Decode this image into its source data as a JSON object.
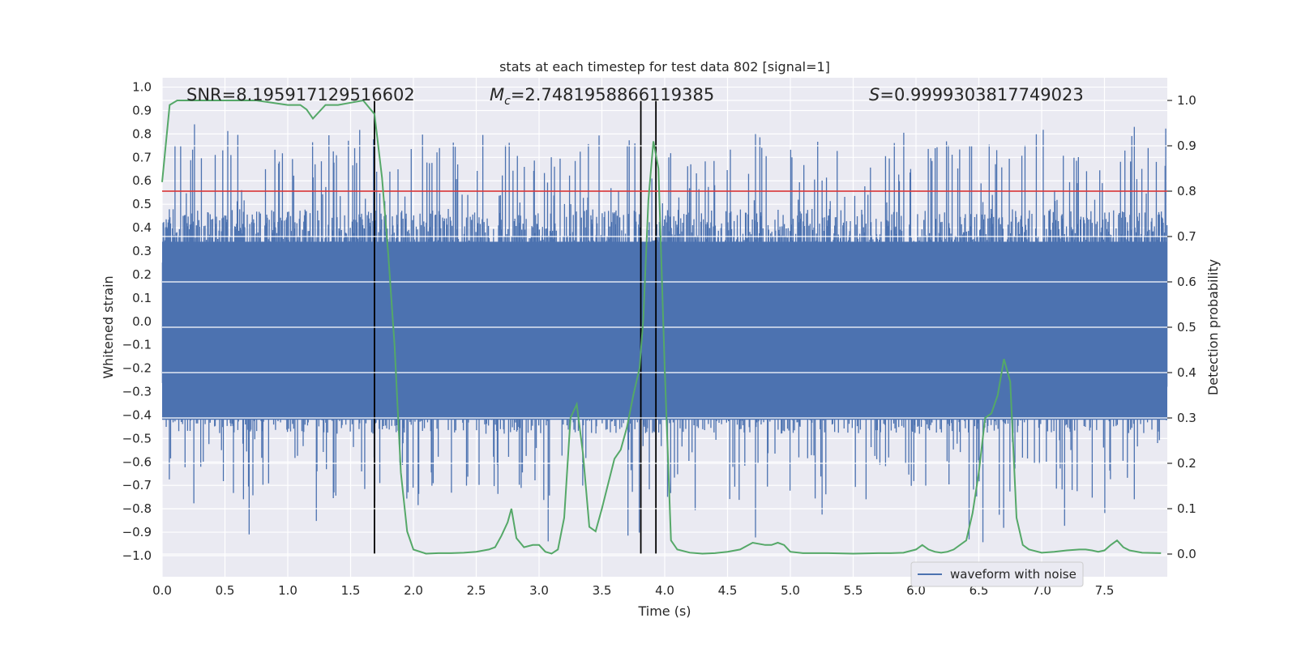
{
  "chart_data": {
    "type": "line",
    "title": "stats at each timestep for test data 802 [signal=1]",
    "xlabel": "Time (s)",
    "ylabel_left": "Whitened strain",
    "ylabel_right": "Detection probability",
    "xlim": [
      0.0,
      8.0
    ],
    "ylim_left": [
      -1.09,
      1.04
    ],
    "ylim_right": [
      -0.05,
      1.05
    ],
    "x_ticks": [
      0.0,
      0.5,
      1.0,
      1.5,
      2.0,
      2.5,
      3.0,
      3.5,
      4.0,
      4.5,
      5.0,
      5.5,
      6.0,
      6.5,
      7.0,
      7.5
    ],
    "x_tick_labels": [
      "0.0",
      "0.5",
      "1.0",
      "1.5",
      "2.0",
      "2.5",
      "3.0",
      "3.5",
      "4.0",
      "4.5",
      "5.0",
      "5.5",
      "6.0",
      "6.5",
      "7.0",
      "7.5"
    ],
    "y_ticks_left": [
      1.0,
      0.9,
      0.8,
      0.7,
      0.6,
      0.5,
      0.4,
      0.3,
      0.2,
      0.1,
      0.0,
      -0.1,
      -0.2,
      -0.3,
      -0.4,
      -0.5,
      -0.6,
      -0.7,
      -0.8,
      -0.9,
      -1.0
    ],
    "y_tick_labels_left": [
      "1.0",
      "0.9",
      "0.8",
      "0.7",
      "0.6",
      "0.5",
      "0.4",
      "0.3",
      "0.2",
      "0.1",
      "0.0",
      "−0.1",
      "−0.2",
      "−0.3",
      "−0.4",
      "−0.5",
      "−0.6",
      "−0.7",
      "−0.8",
      "−0.9",
      "−1.0"
    ],
    "y_ticks_right": [
      1.0,
      0.9,
      0.8,
      0.7,
      0.6,
      0.5,
      0.4,
      0.3,
      0.2,
      0.1,
      0.0
    ],
    "y_tick_labels_right": [
      "1.0",
      "0.9",
      "0.8",
      "0.7",
      "0.6",
      "0.5",
      "0.4",
      "0.3",
      "0.2",
      "0.1",
      "0.0"
    ],
    "annotations": {
      "snr": "SNR=8.195917129516602",
      "mc_symbol": "M",
      "mc_sub": "c",
      "mc_value": "=2.7481958866119385",
      "s_symbol": "S",
      "s_value": "=0.9999303817749023"
    },
    "threshold_line": {
      "y_right": 0.8,
      "color": "#d62728"
    },
    "vertical_lines_time_s": [
      1.69,
      3.81,
      3.93
    ],
    "legend": {
      "label": "waveform with noise",
      "position": "lower-right"
    },
    "waveform": {
      "name": "waveform with noise",
      "color": "#4c72b0",
      "approx_envelope": [
        -0.42,
        0.42
      ],
      "peak_min": -1.0,
      "peak_max": 0.93,
      "samples": 1600
    },
    "probability_series": {
      "name": "detection probability",
      "color": "#55a868",
      "x": [
        0.0,
        0.06,
        0.12,
        0.25,
        0.5,
        0.75,
        1.0,
        1.1,
        1.15,
        1.2,
        1.3,
        1.4,
        1.5,
        1.6,
        1.69,
        1.75,
        1.8,
        1.85,
        1.9,
        1.95,
        2.0,
        2.1,
        2.2,
        2.3,
        2.4,
        2.5,
        2.6,
        2.65,
        2.7,
        2.75,
        2.78,
        2.82,
        2.88,
        2.95,
        3.0,
        3.05,
        3.1,
        3.15,
        3.2,
        3.25,
        3.3,
        3.35,
        3.4,
        3.45,
        3.5,
        3.6,
        3.65,
        3.7,
        3.75,
        3.8,
        3.83,
        3.87,
        3.91,
        3.95,
        4.0,
        4.05,
        4.1,
        4.2,
        4.3,
        4.4,
        4.5,
        4.6,
        4.7,
        4.8,
        4.85,
        4.9,
        4.95,
        5.0,
        5.1,
        5.3,
        5.5,
        5.7,
        5.8,
        5.9,
        6.0,
        6.05,
        6.1,
        6.15,
        6.2,
        6.25,
        6.3,
        6.4,
        6.45,
        6.5,
        6.55,
        6.6,
        6.65,
        6.7,
        6.75,
        6.8,
        6.85,
        6.9,
        7.0,
        7.1,
        7.2,
        7.3,
        7.35,
        7.4,
        7.45,
        7.5,
        7.55,
        7.6,
        7.65,
        7.7,
        7.8,
        7.95
      ],
      "values": [
        0.82,
        0.99,
        1.0,
        1.0,
        1.0,
        1.0,
        0.99,
        0.99,
        0.98,
        0.96,
        0.99,
        0.99,
        0.995,
        1.0,
        0.97,
        0.83,
        0.66,
        0.46,
        0.18,
        0.05,
        0.01,
        0.001,
        0.002,
        0.002,
        0.003,
        0.005,
        0.01,
        0.015,
        0.04,
        0.07,
        0.1,
        0.035,
        0.015,
        0.02,
        0.02,
        0.005,
        0.001,
        0.01,
        0.08,
        0.3,
        0.33,
        0.22,
        0.06,
        0.05,
        0.1,
        0.21,
        0.23,
        0.28,
        0.35,
        0.41,
        0.52,
        0.78,
        0.91,
        0.85,
        0.41,
        0.03,
        0.01,
        0.003,
        0.001,
        0.002,
        0.005,
        0.01,
        0.025,
        0.02,
        0.02,
        0.025,
        0.02,
        0.005,
        0.002,
        0.002,
        0.001,
        0.002,
        0.002,
        0.003,
        0.01,
        0.02,
        0.01,
        0.005,
        0.003,
        0.005,
        0.01,
        0.03,
        0.09,
        0.18,
        0.3,
        0.31,
        0.35,
        0.43,
        0.38,
        0.08,
        0.02,
        0.01,
        0.003,
        0.005,
        0.008,
        0.01,
        0.01,
        0.008,
        0.005,
        0.008,
        0.02,
        0.03,
        0.015,
        0.008,
        0.003,
        0.002
      ]
    }
  }
}
